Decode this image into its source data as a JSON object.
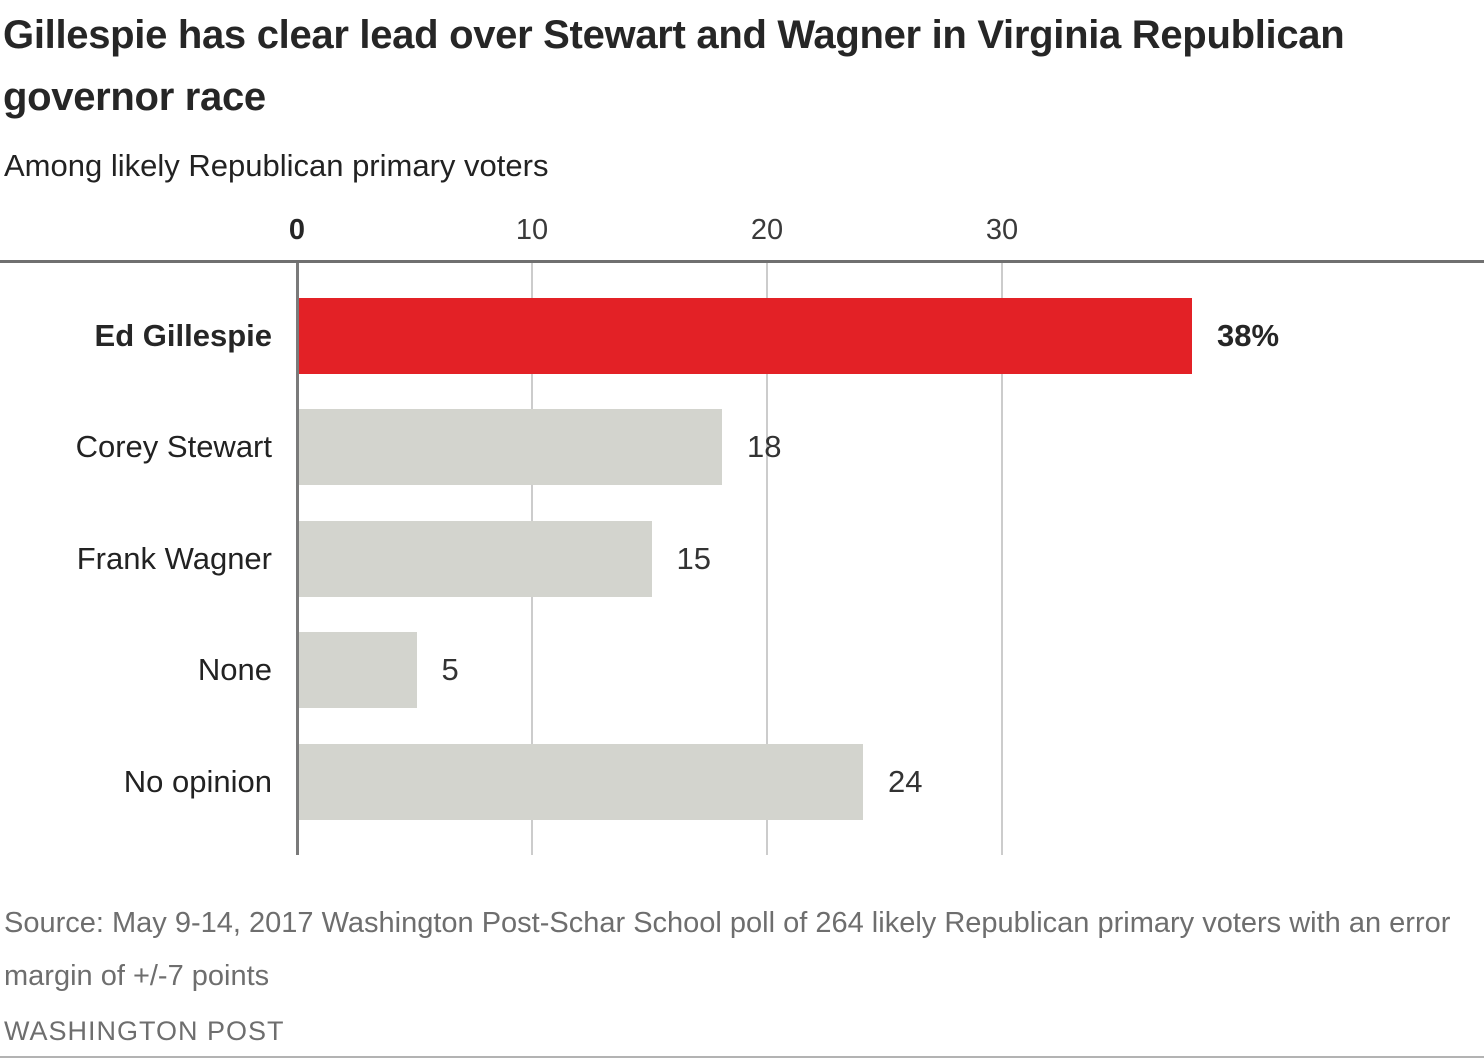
{
  "header": {
    "title": "Gillespie has clear lead over Stewart and Wagner in Virginia Republican governor race",
    "subtitle": "Among likely Republican primary voters"
  },
  "chart_data": {
    "type": "bar",
    "orientation": "horizontal",
    "title": "Gillespie has clear lead over Stewart and Wagner in Virginia Republican governor race",
    "subtitle": "Among likely Republican primary voters",
    "categories": [
      "Ed Gillespie",
      "Corey Stewart",
      "Frank Wagner",
      "None",
      "No opinion"
    ],
    "values": [
      38,
      18,
      15,
      5,
      24
    ],
    "value_labels": [
      "38%",
      "18",
      "15",
      "5",
      "24"
    ],
    "highlight_index": 0,
    "x_ticks": [
      0,
      10,
      20,
      30
    ],
    "xlim": [
      0,
      50
    ],
    "grid": "vertical-only",
    "legend": "none",
    "colors": {
      "accent": "#e32126",
      "bar": "#d3d4ce",
      "grid": "#cccccc",
      "axis": "#7a7a7a",
      "rule": "#707070"
    }
  },
  "footer": {
    "source": "Source: May 9-14, 2017 Washington Post-Schar School poll of 264 likely Republican primary voters with an error margin of +/-7 points",
    "credit": "WASHINGTON POST"
  }
}
